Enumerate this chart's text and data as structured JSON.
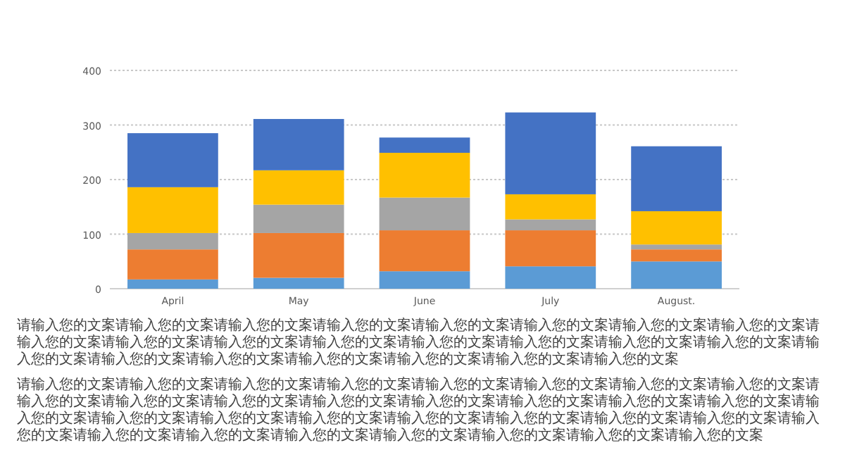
{
  "chart_data": {
    "type": "bar",
    "stacked": true,
    "categories": [
      "April",
      "May",
      "June",
      "July",
      "August."
    ],
    "series": [
      {
        "color": "#5b9bd5",
        "values": [
          17,
          20,
          32,
          41,
          50
        ]
      },
      {
        "color": "#ed7d31",
        "values": [
          55,
          82,
          75,
          66,
          22
        ]
      },
      {
        "color": "#a5a5a5",
        "values": [
          30,
          52,
          60,
          20,
          9
        ]
      },
      {
        "color": "#ffc000",
        "values": [
          84,
          63,
          82,
          46,
          61
        ]
      },
      {
        "color": "#4472c4",
        "values": [
          99,
          94,
          28,
          150,
          119
        ]
      }
    ],
    "ylim": [
      0,
      400
    ],
    "yticks": [
      0,
      100,
      200,
      300,
      400
    ],
    "grid": "y",
    "annotations": [
      "请输入您的文案请输入您的文案请输入您的文案请输入您的文案请输入您的文案请输入您的文案请输入您的文案请输入您的文案请输入您的文案请输入您的文案请输入您的文案请输入您的文案请输入您的文案请输入您的文案请输入您的文案请输入您的文案请输入您的文案请输入您的文案请输入您的文案请输入您的文案请输入您的文案请输入您的文案请输入您的文案",
      "请输入您的文案请输入您的文案请输入您的文案请输入您的文案请输入您的文案请输入您的文案请输入您的文案请输入您的文案请输入您的文案请输入您的文案请输入您的文案请输入您的文案请输入您的文案请输入您的文案请输入您的文案请输入您的文案请输入您的文案请输入您的文案请输入您的文案请输入您的文案请输入您的文案请输入您的文案请输入您的文案请输入您的文案请输入您的文案请输入您的文案请输入您的文案请输入您的文案请输入您的文案请输入您的文案请输入您的文案请输入您的文案"
    ]
  }
}
